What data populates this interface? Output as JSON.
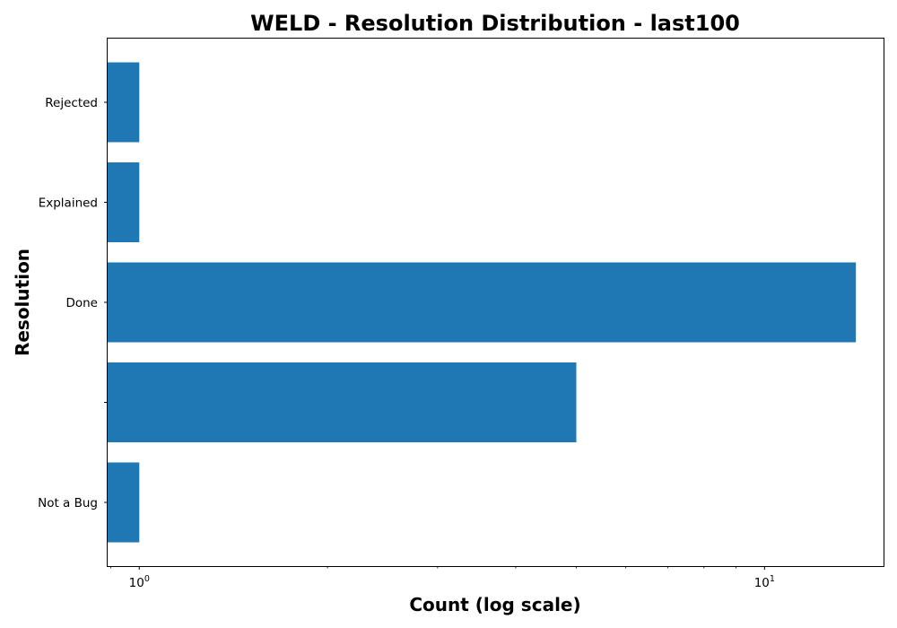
{
  "chart_data": {
    "type": "bar",
    "orientation": "horizontal",
    "title": "WELD - Resolution Distribution - last100",
    "xlabel": "Count (log scale)",
    "ylabel": "Resolution",
    "xscale": "log",
    "xlim": [
      0.89,
      15.5
    ],
    "x_ticks": [
      {
        "value": 1,
        "base": "10",
        "exp": "0"
      },
      {
        "value": 10,
        "base": "10",
        "exp": "1"
      }
    ],
    "categories": [
      "Not a Bug",
      "",
      "Done",
      "Explained",
      "Rejected"
    ],
    "values": [
      1,
      5,
      14,
      1,
      1
    ],
    "bar_color": "#1f77b4",
    "grid": false,
    "legend": "none"
  }
}
